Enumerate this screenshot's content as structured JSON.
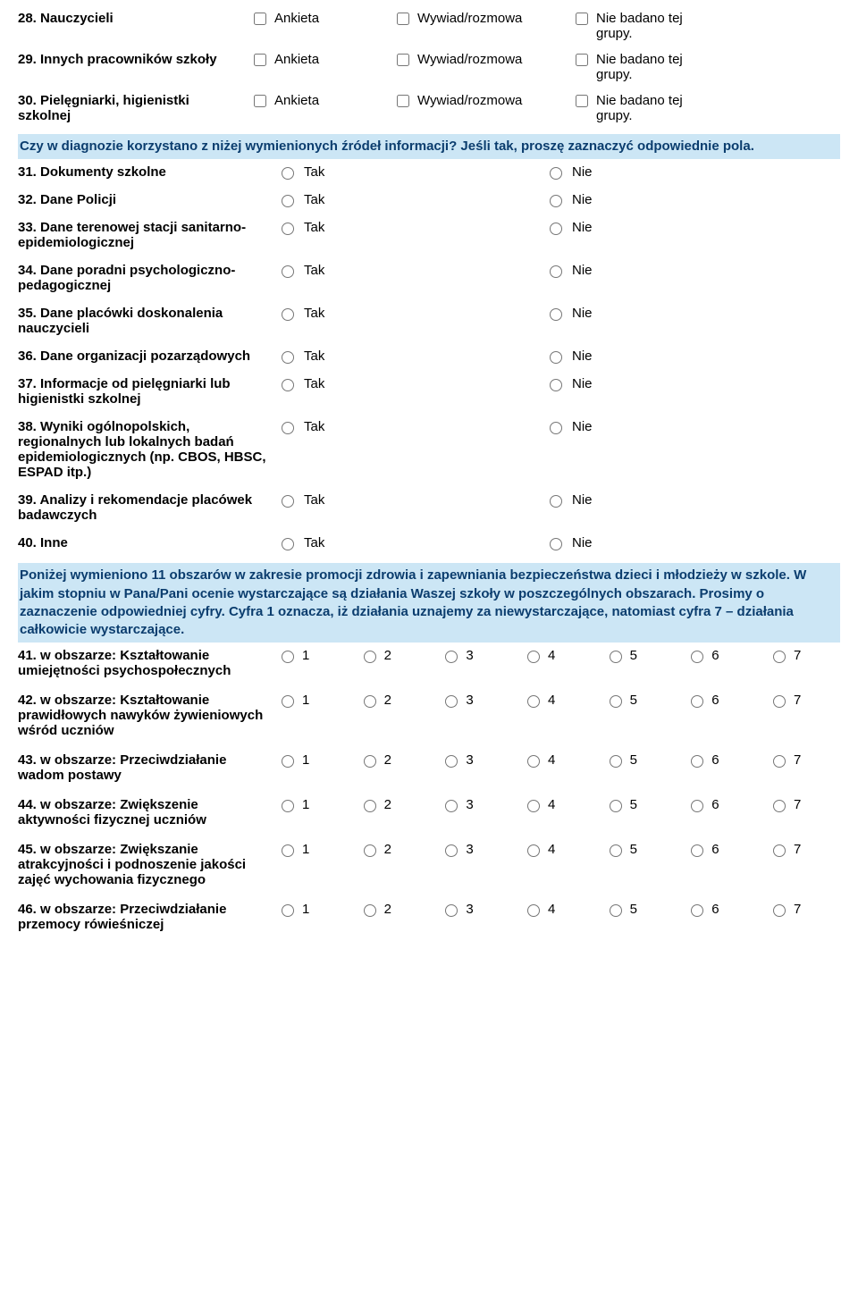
{
  "section1": {
    "rows": [
      {
        "label": "28. Nauczycieli",
        "name": "q28"
      },
      {
        "label": "29. Innych pracowników szkoły",
        "name": "q29"
      },
      {
        "label": "30. Pielęgniarki, higienistki szkolnej",
        "name": "q30"
      }
    ],
    "opt_ankieta": "Ankieta",
    "opt_wywiad": "Wywiad/rozmowa",
    "opt_niebadano": "Nie badano tej grupy."
  },
  "banner1": "Czy w diagnozie korzystano z niżej wymienionych źródeł informacji? Jeśli tak, proszę zaznaczyć odpowiednie pola.",
  "section2": {
    "tak": "Tak",
    "nie": "Nie",
    "rows": [
      {
        "label": "31. Dokumenty szkolne",
        "name": "q31"
      },
      {
        "label": "32. Dane Policji",
        "name": "q32"
      },
      {
        "label": "33. Dane terenowej stacji sanitarno-epidemiologicznej",
        "name": "q33"
      },
      {
        "label": "34. Dane poradni psychologiczno-pedagogicznej",
        "name": "q34"
      },
      {
        "label": "35. Dane placówki doskonalenia nauczycieli",
        "name": "q35"
      },
      {
        "label": "36. Dane organizacji pozarządowych",
        "name": "q36"
      },
      {
        "label": "37. Informacje od pielęgniarki lub higienistki szkolnej",
        "name": "q37"
      },
      {
        "label": "38. Wyniki ogólnopolskich, regionalnych lub lokalnych badań epidemiologicznych (np. CBOS, HBSC, ESPAD itp.)",
        "name": "q38"
      },
      {
        "label": "39. Analizy i rekomendacje placówek badawczych",
        "name": "q39"
      },
      {
        "label": "40. Inne",
        "name": "q40"
      }
    ]
  },
  "banner2": "Poniżej wymieniono 11 obszarów w zakresie promocji zdrowia i zapewniania bezpieczeństwa dzieci i młodzieży w szkole. W jakim stopniu w Pana/Pani ocenie wystarczające są działania Waszej szkoły w poszczególnych obszarach. Prosimy o zaznaczenie odpowiedniej cyfry. Cyfra 1 oznacza, iż działania uznajemy za niewystarczające, natomiast cyfra 7 – działania całkowicie wystarczające.",
  "section3": {
    "scale": [
      "1",
      "2",
      "3",
      "4",
      "5",
      "6",
      "7"
    ],
    "rows": [
      {
        "label": "41. w obszarze: Kształtowanie umiejętności psychospołecznych",
        "name": "q41"
      },
      {
        "label": "42. w obszarze: Kształtowanie prawidłowych nawyków żywieniowych wśród uczniów",
        "name": "q42"
      },
      {
        "label": "43. w obszarze: Przeciwdziałanie wadom postawy",
        "name": "q43"
      },
      {
        "label": "44. w obszarze: Zwiększenie aktywności fizycznej uczniów",
        "name": "q44"
      },
      {
        "label": "45. w obszarze: Zwiększanie atrakcyjności i podnoszenie jakości zajęć wychowania fizycznego",
        "name": "q45"
      },
      {
        "label": "46. w obszarze: Przeciwdziałanie przemocy rówieśniczej",
        "name": "q46"
      }
    ]
  },
  "colors": {
    "banner_bg": "#cce6f5",
    "banner_text": "#0b3d6e"
  }
}
